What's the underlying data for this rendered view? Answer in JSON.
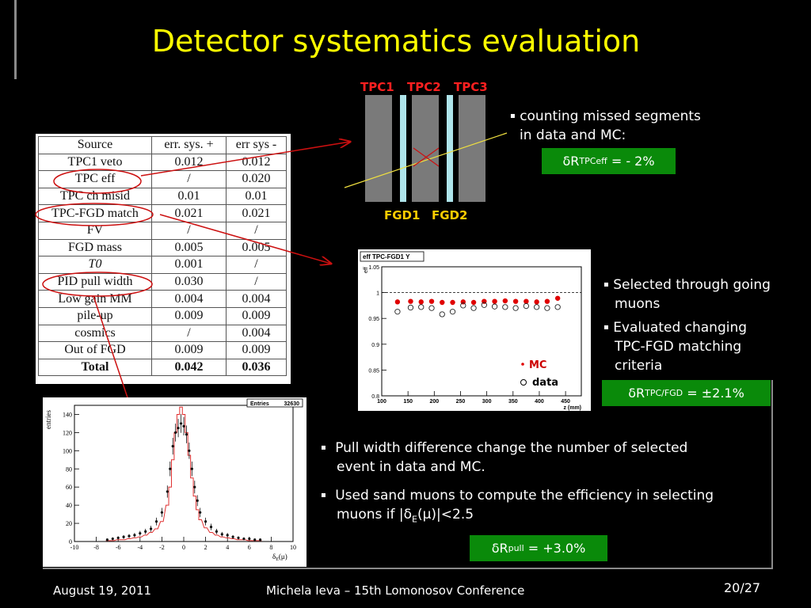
{
  "title": "Detector systematics evaluation",
  "table": {
    "headers": [
      "Source",
      "err. sys. +",
      "err sys -"
    ],
    "rows": [
      [
        "TPC1 veto",
        "0.012",
        "0.012"
      ],
      [
        "TPC eff",
        "/",
        "0.020"
      ],
      [
        "TPC ch misid",
        "0.01",
        "0.01"
      ],
      [
        "TPC-FGD match",
        "0.021",
        "0.021"
      ],
      [
        "FV",
        "/",
        "/"
      ],
      [
        "FGD mass",
        "0.005",
        "0.005"
      ],
      [
        "T0",
        "0.001",
        "/"
      ],
      [
        "PID pull width",
        "0.030",
        "/"
      ],
      [
        "Low gain MM",
        "0.004",
        "0.004"
      ],
      [
        "pile-up",
        "0.009",
        "0.009"
      ],
      [
        "cosmics",
        "/",
        "0.004"
      ],
      [
        "Out of FGD",
        "0.009",
        "0.009"
      ],
      [
        "Total",
        "0.042",
        "0.036"
      ]
    ]
  },
  "diagram": {
    "tpc_labels": [
      "TPC1",
      "TPC2",
      "TPC3"
    ],
    "fgd_labels": [
      "FGD1",
      "FGD2"
    ]
  },
  "section1": {
    "bullet_line1": "counting missed segments",
    "bullet_line2": "in data and MC:",
    "result_main": "δR",
    "result_sub": "TPCeff",
    "result_value": " = - 2%"
  },
  "section2": {
    "bullet1_line1": "Selected through going",
    "bullet1_line2": "muons",
    "bullet2_line1": "Evaluated changing",
    "bullet2_line2": "TPC-FGD matching",
    "bullet2_line3": "criteria",
    "result_main": "δR",
    "result_sub": "TPC/FGD",
    "result_value": " = ±2.1%"
  },
  "section3": {
    "bullet1_line1": "Pull width difference change the number of selected",
    "bullet1_line2": "event in data and MC.",
    "bullet2_line1": "Used sand muons to compute the efficiency in selecting",
    "bullet2_line2_a": "muons if |δ",
    "bullet2_line2_sub": "E",
    "bullet2_line2_b": "(μ)|<2.5",
    "result_main": "δR",
    "result_sub": "pull",
    "result_value": " = +3.0%"
  },
  "chart_data": [
    {
      "type": "scatter",
      "title": "eff TPC-FGD1 Y",
      "xlabel": "z (mm)",
      "ylabel": "eff",
      "xlim": [
        100,
        480
      ],
      "ylim": [
        0.8,
        1.05
      ],
      "x_ticks": [
        "100",
        "150",
        "200",
        "250",
        "300",
        "350",
        "400",
        "450"
      ],
      "y_ticks": [
        "0.8",
        "0.85",
        "0.9",
        "0.95",
        "1",
        "1.05"
      ],
      "reference_line": 1,
      "series": [
        {
          "name": "MC",
          "color": "#e00000",
          "x": [
            130,
            155,
            175,
            195,
            215,
            235,
            255,
            275,
            295,
            315,
            335,
            355,
            375,
            395,
            415,
            435
          ],
          "y": [
            0.982,
            0.983,
            0.982,
            0.983,
            0.981,
            0.981,
            0.982,
            0.981,
            0.983,
            0.983,
            0.984,
            0.983,
            0.983,
            0.982,
            0.983,
            0.989
          ]
        },
        {
          "name": "data",
          "color": "#222222",
          "x": [
            130,
            155,
            175,
            195,
            215,
            235,
            255,
            275,
            295,
            315,
            335,
            355,
            375,
            395,
            415,
            435
          ],
          "y": [
            0.963,
            0.971,
            0.972,
            0.97,
            0.958,
            0.963,
            0.975,
            0.97,
            0.976,
            0.973,
            0.972,
            0.97,
            0.974,
            0.972,
            0.97,
            0.972
          ]
        }
      ],
      "legend": [
        "MC",
        "data"
      ]
    },
    {
      "type": "line",
      "stat_box": {
        "label": "Entries",
        "value": "32630"
      },
      "xlabel_main": "δ",
      "xlabel_sub": "E",
      "xlabel_tail": "(μ)",
      "ylabel": "entries",
      "xlim": [
        -10,
        10
      ],
      "ylim": [
        0,
        150
      ],
      "x_ticks": [
        "-10",
        "-8",
        "-6",
        "-4",
        "-2",
        "0",
        "2",
        "4",
        "6",
        "8",
        "10"
      ],
      "y_ticks": [
        "0",
        "20",
        "40",
        "60",
        "80",
        "100",
        "120",
        "140"
      ],
      "series": [
        {
          "name": "MC",
          "color": "#e03030",
          "x": [
            -7,
            -6.5,
            -6,
            -5.5,
            -5,
            -4.5,
            -4,
            -3.5,
            -3,
            -2.5,
            -2,
            -1.5,
            -1.25,
            -1,
            -0.75,
            -0.5,
            -0.25,
            0,
            0.25,
            0.5,
            0.75,
            1,
            1.25,
            1.5,
            2,
            2.5,
            3,
            3.5,
            4,
            4.5,
            5,
            5.5,
            6,
            6.5,
            7
          ],
          "y": [
            1,
            1,
            2,
            2,
            3,
            4,
            5,
            7,
            10,
            14,
            22,
            40,
            60,
            90,
            120,
            140,
            148,
            140,
            120,
            95,
            70,
            50,
            35,
            24,
            15,
            10,
            7,
            5,
            4,
            3,
            2,
            2,
            1,
            1,
            1
          ]
        },
        {
          "name": "data",
          "color": "#111111",
          "x": [
            -7,
            -6.5,
            -6,
            -5.5,
            -5,
            -4.5,
            -4,
            -3.5,
            -3,
            -2.5,
            -2,
            -1.5,
            -1.25,
            -1,
            -0.75,
            -0.5,
            -0.25,
            0,
            0.25,
            0.5,
            0.75,
            1,
            1.25,
            1.5,
            2,
            2.5,
            3,
            3.5,
            4,
            4.5,
            5,
            5.5,
            6,
            6.5,
            7
          ],
          "y": [
            2,
            3,
            4,
            5,
            6,
            7,
            9,
            11,
            14,
            22,
            32,
            55,
            80,
            105,
            120,
            125,
            130,
            127,
            118,
            100,
            80,
            60,
            45,
            32,
            22,
            16,
            11,
            8,
            7,
            5,
            4,
            3,
            3,
            2,
            2
          ]
        }
      ]
    }
  ],
  "footer": {
    "date": "August 19, 2011",
    "author": "Michela Ieva – 15th Lomonosov Conference",
    "page": "20/27"
  }
}
